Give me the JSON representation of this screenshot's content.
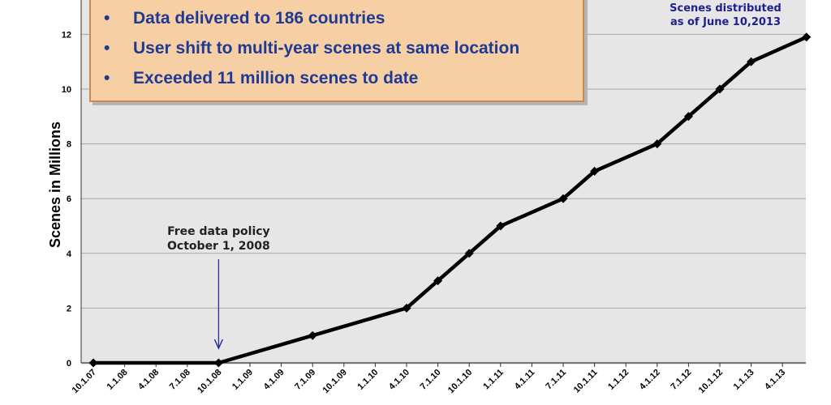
{
  "chart_data": {
    "type": "line",
    "title": "",
    "xlabel": "",
    "ylabel": "Scenes in Millions",
    "ylim": [
      0,
      12.8
    ],
    "yticks": [
      0,
      2,
      4,
      6,
      8,
      10,
      12
    ],
    "grid": "horizontal",
    "categories": [
      "10.1.07",
      "1.1.08",
      "4.1.08",
      "7.1.08",
      "10.1.08",
      "1.1.09",
      "4.1.09",
      "7.1.09",
      "10.1.09",
      "1.1.10",
      "4.1.10",
      "7.1.10",
      "10.1.10",
      "1.1.11",
      "4.1.11",
      "7.1.11",
      "10.1.11",
      "1.1.12",
      "4.1.12",
      "7.1.12",
      "10.1.12",
      "1.1.13",
      "4.1.13"
    ],
    "series": [
      {
        "color": "#000000",
        "points": [
          {
            "x": "10.1.07",
            "y": 0
          },
          {
            "x": "10.1.08",
            "y": 0
          },
          {
            "x": "7.1.09",
            "y": 1
          },
          {
            "x": "4.1.10",
            "y": 2
          },
          {
            "x": "7.1.10",
            "y": 3
          },
          {
            "x": "10.1.10",
            "y": 4
          },
          {
            "x": "1.1.11",
            "y": 5
          },
          {
            "x": "7.1.11",
            "y": 6
          },
          {
            "x": "10.1.11",
            "y": 7
          },
          {
            "x": "4.1.12",
            "y": 8
          },
          {
            "x": "7.1.12",
            "y": 9
          },
          {
            "x": "10.1.12",
            "y": 10
          },
          {
            "x": "1.1.13",
            "y": 11
          },
          {
            "x": "June 10,2013",
            "y": 11.9
          }
        ]
      }
    ],
    "annotations": {
      "policy_lines": [
        "Free data policy",
        "October 1, 2008"
      ],
      "policy_x": "10.1.08",
      "distributed_lines": [
        "Scenes distributed",
        "as of June 10,2013"
      ]
    }
  },
  "callout": {
    "bullets": [
      "Data delivered to 186 countries",
      "User shift to multi-year scenes at same location",
      "Exceeded 11 million scenes to date"
    ],
    "bullet_glyph": "•"
  },
  "colors": {
    "plot_background": "#e6e6e6",
    "gridline": "#a6a6a6",
    "arrow": "#2a2a9c",
    "callout_fill": "#f7cfa4",
    "callout_border": "#c98a4f",
    "callout_text": "#1f3a93"
  }
}
